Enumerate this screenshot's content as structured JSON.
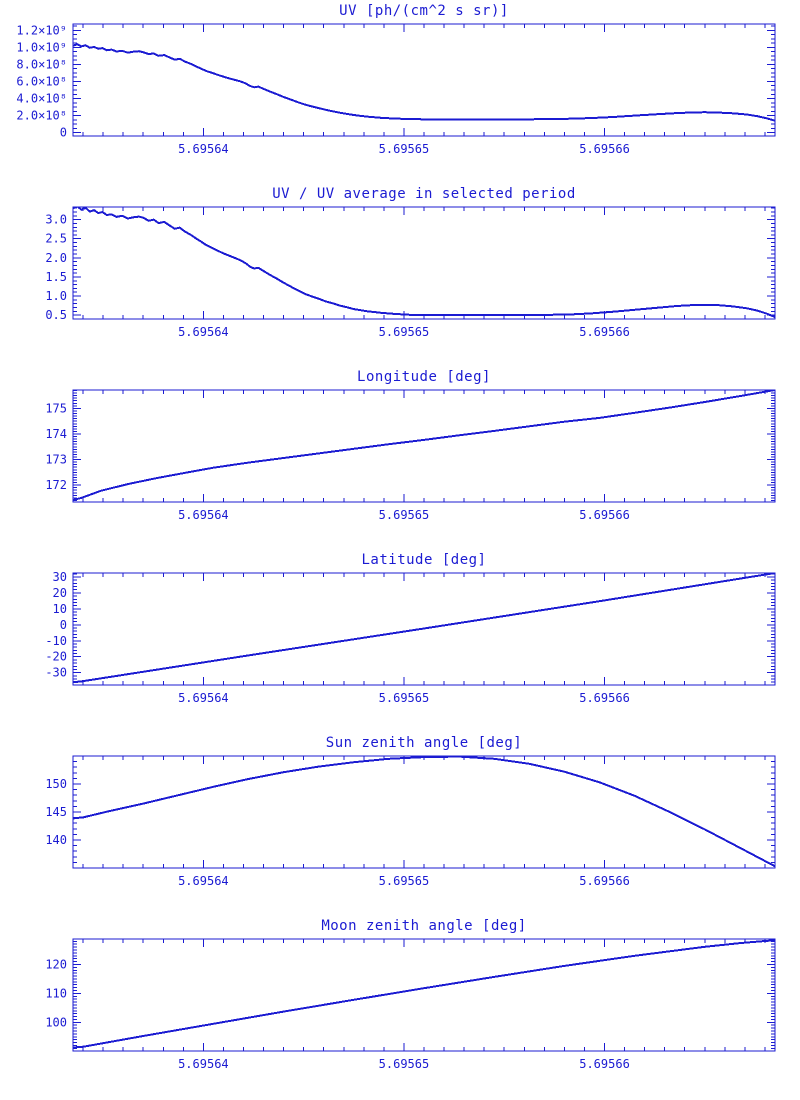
{
  "page": {
    "background": "#ffffff",
    "accent": "#1b1bd2",
    "description": "Six stacked time-series plots, blue on white, IDL style"
  },
  "chart_data": [
    {
      "type": "line",
      "title": "UV [ph/(cm^2 s sr)]",
      "xlabel": "",
      "ylabel": "",
      "y_units": "x10^8 ph/(cm^2 s sr)",
      "x_range": [
        5.6956335,
        5.6956685
      ],
      "y_range": [
        -0.4,
        12.75
      ],
      "x_ticks": [
        {
          "v": 5.69564,
          "label": "5.69564"
        },
        {
          "v": 5.69565,
          "label": "5.69565"
        },
        {
          "v": 5.69566,
          "label": "5.69566"
        }
      ],
      "x_minor_step": 1e-06,
      "y_ticks": [
        {
          "v": 12,
          "label": "1.2×10⁹"
        },
        {
          "v": 10,
          "label": "1.0×10⁹"
        },
        {
          "v": 8,
          "label": "8.0×10⁸"
        },
        {
          "v": 6,
          "label": "6.0×10⁸"
        },
        {
          "v": 4,
          "label": "4.0×10⁸"
        },
        {
          "v": 2,
          "label": "2.0×10⁸"
        },
        {
          "v": 0,
          "label": "0"
        }
      ],
      "y_minor_step": 0.5,
      "x_normalized": true,
      "points": [
        [
          0,
          10.2
        ],
        [
          0.006,
          10.38
        ],
        [
          0.012,
          10.12
        ],
        [
          0.018,
          10.25
        ],
        [
          0.024,
          9.96
        ],
        [
          0.03,
          10.06
        ],
        [
          0.036,
          9.84
        ],
        [
          0.042,
          9.92
        ],
        [
          0.048,
          9.66
        ],
        [
          0.055,
          9.74
        ],
        [
          0.062,
          9.52
        ],
        [
          0.07,
          9.6
        ],
        [
          0.078,
          9.38
        ],
        [
          0.086,
          9.5
        ],
        [
          0.094,
          9.56
        ],
        [
          0.1,
          9.44
        ],
        [
          0.108,
          9.22
        ],
        [
          0.115,
          9.3
        ],
        [
          0.122,
          9.02
        ],
        [
          0.13,
          9.1
        ],
        [
          0.138,
          8.8
        ],
        [
          0.145,
          8.56
        ],
        [
          0.152,
          8.66
        ],
        [
          0.16,
          8.32
        ],
        [
          0.168,
          8.06
        ],
        [
          0.175,
          7.78
        ],
        [
          0.182,
          7.52
        ],
        [
          0.19,
          7.22
        ],
        [
          0.198,
          7.02
        ],
        [
          0.206,
          6.78
        ],
        [
          0.214,
          6.58
        ],
        [
          0.222,
          6.38
        ],
        [
          0.23,
          6.2
        ],
        [
          0.238,
          6.02
        ],
        [
          0.246,
          5.78
        ],
        [
          0.252,
          5.48
        ],
        [
          0.258,
          5.32
        ],
        [
          0.264,
          5.4
        ],
        [
          0.272,
          5.12
        ],
        [
          0.28,
          4.84
        ],
        [
          0.29,
          4.52
        ],
        [
          0.3,
          4.18
        ],
        [
          0.31,
          3.88
        ],
        [
          0.32,
          3.58
        ],
        [
          0.33,
          3.3
        ],
        [
          0.34,
          3.08
        ],
        [
          0.35,
          2.88
        ],
        [
          0.36,
          2.68
        ],
        [
          0.37,
          2.5
        ],
        [
          0.38,
          2.34
        ],
        [
          0.39,
          2.2
        ],
        [
          0.4,
          2.06
        ],
        [
          0.41,
          1.96
        ],
        [
          0.42,
          1.87
        ],
        [
          0.43,
          1.79
        ],
        [
          0.44,
          1.73
        ],
        [
          0.46,
          1.64
        ],
        [
          0.48,
          1.59
        ],
        [
          0.5,
          1.56
        ],
        [
          0.53,
          1.54
        ],
        [
          0.56,
          1.55
        ],
        [
          0.59,
          1.54
        ],
        [
          0.62,
          1.55
        ],
        [
          0.65,
          1.56
        ],
        [
          0.68,
          1.58
        ],
        [
          0.71,
          1.63
        ],
        [
          0.74,
          1.71
        ],
        [
          0.77,
          1.83
        ],
        [
          0.8,
          1.99
        ],
        [
          0.83,
          2.15
        ],
        [
          0.86,
          2.29
        ],
        [
          0.88,
          2.36
        ],
        [
          0.9,
          2.39
        ],
        [
          0.92,
          2.35
        ],
        [
          0.94,
          2.27
        ],
        [
          0.96,
          2.12
        ],
        [
          0.975,
          1.93
        ],
        [
          0.988,
          1.68
        ],
        [
          1,
          1.4
        ]
      ]
    },
    {
      "type": "line",
      "title": "UV / UV average in selected period",
      "x_range": [
        5.6956335,
        5.6956685
      ],
      "y_range": [
        0.4,
        3.33
      ],
      "x_ticks": [
        {
          "v": 5.69564,
          "label": "5.69564"
        },
        {
          "v": 5.69565,
          "label": "5.69565"
        },
        {
          "v": 5.69566,
          "label": "5.69566"
        }
      ],
      "x_minor_step": 1e-06,
      "y_ticks": [
        {
          "v": 3.0,
          "label": "3.0"
        },
        {
          "v": 2.5,
          "label": "2.5"
        },
        {
          "v": 2.0,
          "label": "2.0"
        },
        {
          "v": 1.5,
          "label": "1.5"
        },
        {
          "v": 1.0,
          "label": "1.0"
        },
        {
          "v": 0.5,
          "label": "0.5"
        }
      ],
      "y_minor_step": 0.1,
      "x_normalized": true,
      "points": [
        [
          0,
          3.29
        ],
        [
          0.006,
          3.35
        ],
        [
          0.012,
          3.26
        ],
        [
          0.018,
          3.31
        ],
        [
          0.024,
          3.21
        ],
        [
          0.03,
          3.25
        ],
        [
          0.036,
          3.17
        ],
        [
          0.042,
          3.2
        ],
        [
          0.048,
          3.12
        ],
        [
          0.055,
          3.14
        ],
        [
          0.062,
          3.07
        ],
        [
          0.07,
          3.1
        ],
        [
          0.078,
          3.03
        ],
        [
          0.086,
          3.06
        ],
        [
          0.094,
          3.08
        ],
        [
          0.1,
          3.05
        ],
        [
          0.108,
          2.97
        ],
        [
          0.115,
          3.0
        ],
        [
          0.122,
          2.91
        ],
        [
          0.13,
          2.94
        ],
        [
          0.138,
          2.84
        ],
        [
          0.145,
          2.76
        ],
        [
          0.152,
          2.79
        ],
        [
          0.16,
          2.68
        ],
        [
          0.168,
          2.6
        ],
        [
          0.175,
          2.51
        ],
        [
          0.182,
          2.43
        ],
        [
          0.19,
          2.33
        ],
        [
          0.198,
          2.26
        ],
        [
          0.206,
          2.19
        ],
        [
          0.214,
          2.12
        ],
        [
          0.222,
          2.06
        ],
        [
          0.23,
          2.0
        ],
        [
          0.238,
          1.94
        ],
        [
          0.246,
          1.86
        ],
        [
          0.252,
          1.77
        ],
        [
          0.258,
          1.72
        ],
        [
          0.264,
          1.74
        ],
        [
          0.272,
          1.65
        ],
        [
          0.28,
          1.56
        ],
        [
          0.29,
          1.46
        ],
        [
          0.3,
          1.35
        ],
        [
          0.31,
          1.25
        ],
        [
          0.32,
          1.15
        ],
        [
          0.33,
          1.06
        ],
        [
          0.34,
          0.99
        ],
        [
          0.35,
          0.93
        ],
        [
          0.36,
          0.86
        ],
        [
          0.37,
          0.81
        ],
        [
          0.38,
          0.75
        ],
        [
          0.39,
          0.71
        ],
        [
          0.4,
          0.66
        ],
        [
          0.41,
          0.63
        ],
        [
          0.42,
          0.6
        ],
        [
          0.43,
          0.58
        ],
        [
          0.44,
          0.56
        ],
        [
          0.46,
          0.53
        ],
        [
          0.48,
          0.51
        ],
        [
          0.5,
          0.5
        ],
        [
          0.53,
          0.5
        ],
        [
          0.56,
          0.5
        ],
        [
          0.59,
          0.5
        ],
        [
          0.62,
          0.5
        ],
        [
          0.65,
          0.5
        ],
        [
          0.68,
          0.51
        ],
        [
          0.71,
          0.52
        ],
        [
          0.74,
          0.55
        ],
        [
          0.77,
          0.59
        ],
        [
          0.8,
          0.64
        ],
        [
          0.83,
          0.69
        ],
        [
          0.86,
          0.74
        ],
        [
          0.88,
          0.76
        ],
        [
          0.9,
          0.77
        ],
        [
          0.92,
          0.76
        ],
        [
          0.94,
          0.73
        ],
        [
          0.96,
          0.68
        ],
        [
          0.975,
          0.62
        ],
        [
          0.988,
          0.54
        ],
        [
          1,
          0.45
        ]
      ]
    },
    {
      "type": "line",
      "title": "Longitude [deg]",
      "x_range": [
        5.6956335,
        5.6956685
      ],
      "y_range": [
        171.34,
        175.72
      ],
      "x_ticks": [
        {
          "v": 5.69564,
          "label": "5.69564"
        },
        {
          "v": 5.69565,
          "label": "5.69565"
        },
        {
          "v": 5.69566,
          "label": "5.69566"
        }
      ],
      "x_minor_step": 1e-06,
      "y_ticks": [
        {
          "v": 175,
          "label": "175"
        },
        {
          "v": 174,
          "label": "174"
        },
        {
          "v": 173,
          "label": "173"
        },
        {
          "v": 172,
          "label": "172"
        }
      ],
      "y_minor_step": 0.1,
      "x_normalized": true,
      "points": [
        [
          0,
          171.42
        ],
        [
          0.012,
          171.5
        ],
        [
          0.04,
          171.78
        ],
        [
          0.08,
          172.05
        ],
        [
          0.12,
          172.28
        ],
        [
          0.16,
          172.48
        ],
        [
          0.2,
          172.68
        ],
        [
          0.25,
          172.88
        ],
        [
          0.3,
          173.06
        ],
        [
          0.35,
          173.24
        ],
        [
          0.4,
          173.42
        ],
        [
          0.45,
          173.6
        ],
        [
          0.5,
          173.77
        ],
        [
          0.55,
          173.95
        ],
        [
          0.6,
          174.12
        ],
        [
          0.65,
          174.3
        ],
        [
          0.7,
          174.48
        ],
        [
          0.75,
          174.63
        ],
        [
          0.8,
          174.83
        ],
        [
          0.85,
          175.03
        ],
        [
          0.9,
          175.25
        ],
        [
          0.95,
          175.48
        ],
        [
          1,
          175.72
        ]
      ]
    },
    {
      "type": "line",
      "title": "Latitude [deg]",
      "x_range": [
        5.6956335,
        5.6956685
      ],
      "y_range": [
        -37.75,
        32.5
      ],
      "x_ticks": [
        {
          "v": 5.69564,
          "label": "5.69564"
        },
        {
          "v": 5.69565,
          "label": "5.69565"
        },
        {
          "v": 5.69566,
          "label": "5.69566"
        }
      ],
      "x_minor_step": 1e-06,
      "y_ticks": [
        {
          "v": 30,
          "label": "30"
        },
        {
          "v": 20,
          "label": "20"
        },
        {
          "v": 10,
          "label": "10"
        },
        {
          "v": 0,
          "label": "0"
        },
        {
          "v": -10,
          "label": "-10"
        },
        {
          "v": -20,
          "label": "-20"
        },
        {
          "v": -30,
          "label": "-30"
        }
      ],
      "y_minor_step": 2,
      "x_normalized": true,
      "points": [
        [
          0,
          -36.0
        ],
        [
          0.012,
          -35.5
        ],
        [
          0.25,
          -19.2
        ],
        [
          0.5,
          -2.3
        ],
        [
          0.75,
          14.8
        ],
        [
          1,
          32.5
        ]
      ]
    },
    {
      "type": "line",
      "title": "Sun zenith angle [deg]",
      "x_range": [
        5.6956335,
        5.6956685
      ],
      "y_range": [
        135.0,
        155.0
      ],
      "x_ticks": [
        {
          "v": 5.69564,
          "label": "5.69564"
        },
        {
          "v": 5.69565,
          "label": "5.69565"
        },
        {
          "v": 5.69566,
          "label": "5.69566"
        }
      ],
      "x_minor_step": 1e-06,
      "y_ticks": [
        {
          "v": 150,
          "label": "150"
        },
        {
          "v": 145,
          "label": "145"
        },
        {
          "v": 140,
          "label": "140"
        }
      ],
      "y_minor_step": 1,
      "x_normalized": true,
      "points": [
        [
          0,
          143.85
        ],
        [
          0.015,
          144.05
        ],
        [
          0.05,
          145.1
        ],
        [
          0.1,
          146.5
        ],
        [
          0.15,
          148.0
        ],
        [
          0.2,
          149.5
        ],
        [
          0.25,
          150.9
        ],
        [
          0.3,
          152.1
        ],
        [
          0.35,
          153.1
        ],
        [
          0.4,
          153.9
        ],
        [
          0.45,
          154.5
        ],
        [
          0.5,
          154.8
        ],
        [
          0.55,
          154.9
        ],
        [
          0.6,
          154.5
        ],
        [
          0.65,
          153.6
        ],
        [
          0.7,
          152.2
        ],
        [
          0.75,
          150.3
        ],
        [
          0.8,
          147.9
        ],
        [
          0.85,
          145.0
        ],
        [
          0.9,
          141.9
        ],
        [
          0.95,
          138.6
        ],
        [
          1,
          135.3
        ]
      ]
    },
    {
      "type": "line",
      "title": "Moon zenith angle [deg]",
      "x_range": [
        5.6956335,
        5.6956685
      ],
      "y_range": [
        90.1,
        128.8
      ],
      "x_ticks": [
        {
          "v": 5.69564,
          "label": "5.69564"
        },
        {
          "v": 5.69565,
          "label": "5.69565"
        },
        {
          "v": 5.69566,
          "label": "5.69566"
        }
      ],
      "x_minor_step": 1e-06,
      "y_ticks": [
        {
          "v": 120,
          "label": "120"
        },
        {
          "v": 110,
          "label": "110"
        },
        {
          "v": 100,
          "label": "100"
        }
      ],
      "y_minor_step": 1,
      "x_normalized": true,
      "points": [
        [
          0,
          91.3
        ],
        [
          0.015,
          91.6
        ],
        [
          0.1,
          95.3
        ],
        [
          0.2,
          99.5
        ],
        [
          0.3,
          103.7
        ],
        [
          0.4,
          107.8
        ],
        [
          0.5,
          111.8
        ],
        [
          0.6,
          115.7
        ],
        [
          0.7,
          119.5
        ],
        [
          0.8,
          123.0
        ],
        [
          0.9,
          126.1
        ],
        [
          0.95,
          127.4
        ],
        [
          1,
          128.4
        ]
      ]
    }
  ]
}
